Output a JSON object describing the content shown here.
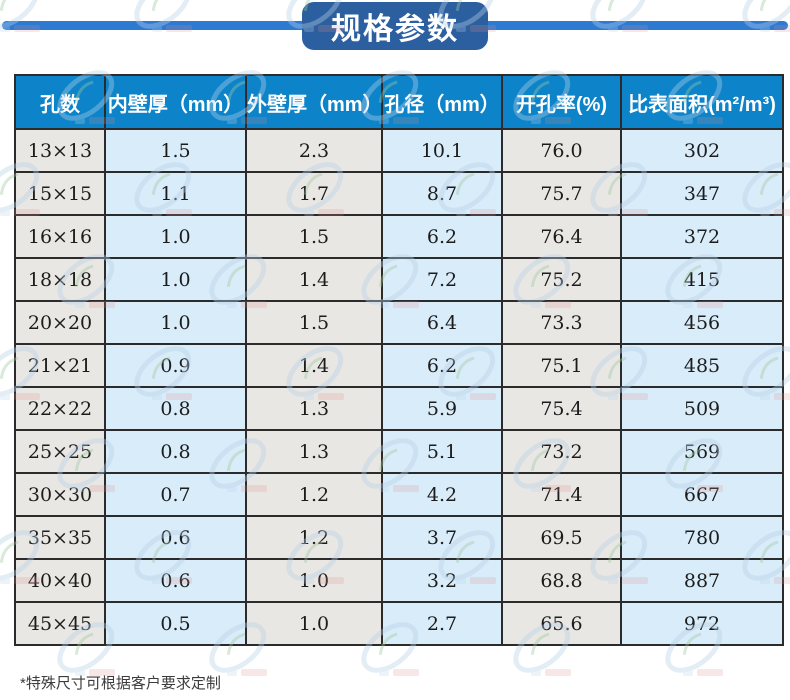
{
  "title": "规格参数",
  "footnote": "*特殊尺寸可根据客户要求定制",
  "colors": {
    "banner_bg": "#2c5f9f",
    "banner_line": "#2d7ad2",
    "table_header_bg": "#0d84c9",
    "table_header_text": "#ffffff",
    "column_gray": "#e9e7e3",
    "column_blue": "#d9ecf9",
    "cell_border": "#2b2b2b",
    "cell_text": "#1c1c1c",
    "watermark_blue": "#b7d0e8",
    "watermark_red": "#dd8a8a",
    "watermark_green": "#9fc9a0"
  },
  "chart_data": {
    "type": "table",
    "title": "规格参数",
    "columns": [
      "孔数",
      "内壁厚（mm）",
      "外壁厚（mm）",
      "孔径（mm）",
      "开孔率(%)",
      "比表面积(m²/m³)"
    ],
    "rows": [
      [
        "13×13",
        "1.5",
        "2.3",
        "10.1",
        "76.0",
        "302"
      ],
      [
        "15×15",
        "1.1",
        "1.7",
        "8.7",
        "75.7",
        "347"
      ],
      [
        "16×16",
        "1.0",
        "1.5",
        "6.2",
        "76.4",
        "372"
      ],
      [
        "18×18",
        "1.0",
        "1.4",
        "7.2",
        "75.2",
        "415"
      ],
      [
        "20×20",
        "1.0",
        "1.5",
        "6.4",
        "73.3",
        "456"
      ],
      [
        "21×21",
        "0.9",
        "1.4",
        "6.2",
        "75.1",
        "485"
      ],
      [
        "22×22",
        "0.8",
        "1.3",
        "5.9",
        "75.4",
        "509"
      ],
      [
        "25×25",
        "0.8",
        "1.3",
        "5.1",
        "73.2",
        "569"
      ],
      [
        "30×30",
        "0.7",
        "1.2",
        "4.2",
        "71.4",
        "667"
      ],
      [
        "35×35",
        "0.6",
        "1.2",
        "3.7",
        "69.5",
        "780"
      ],
      [
        "40×40",
        "0.6",
        "1.0",
        "3.2",
        "68.8",
        "887"
      ],
      [
        "45×45",
        "0.5",
        "1.0",
        "2.7",
        "65.6",
        "972"
      ]
    ],
    "footnote": "*特殊尺寸可根据客户要求定制",
    "layout": {
      "grid": true,
      "column_background_alternation": [
        "gray",
        "blue"
      ],
      "header_position": "top"
    }
  }
}
